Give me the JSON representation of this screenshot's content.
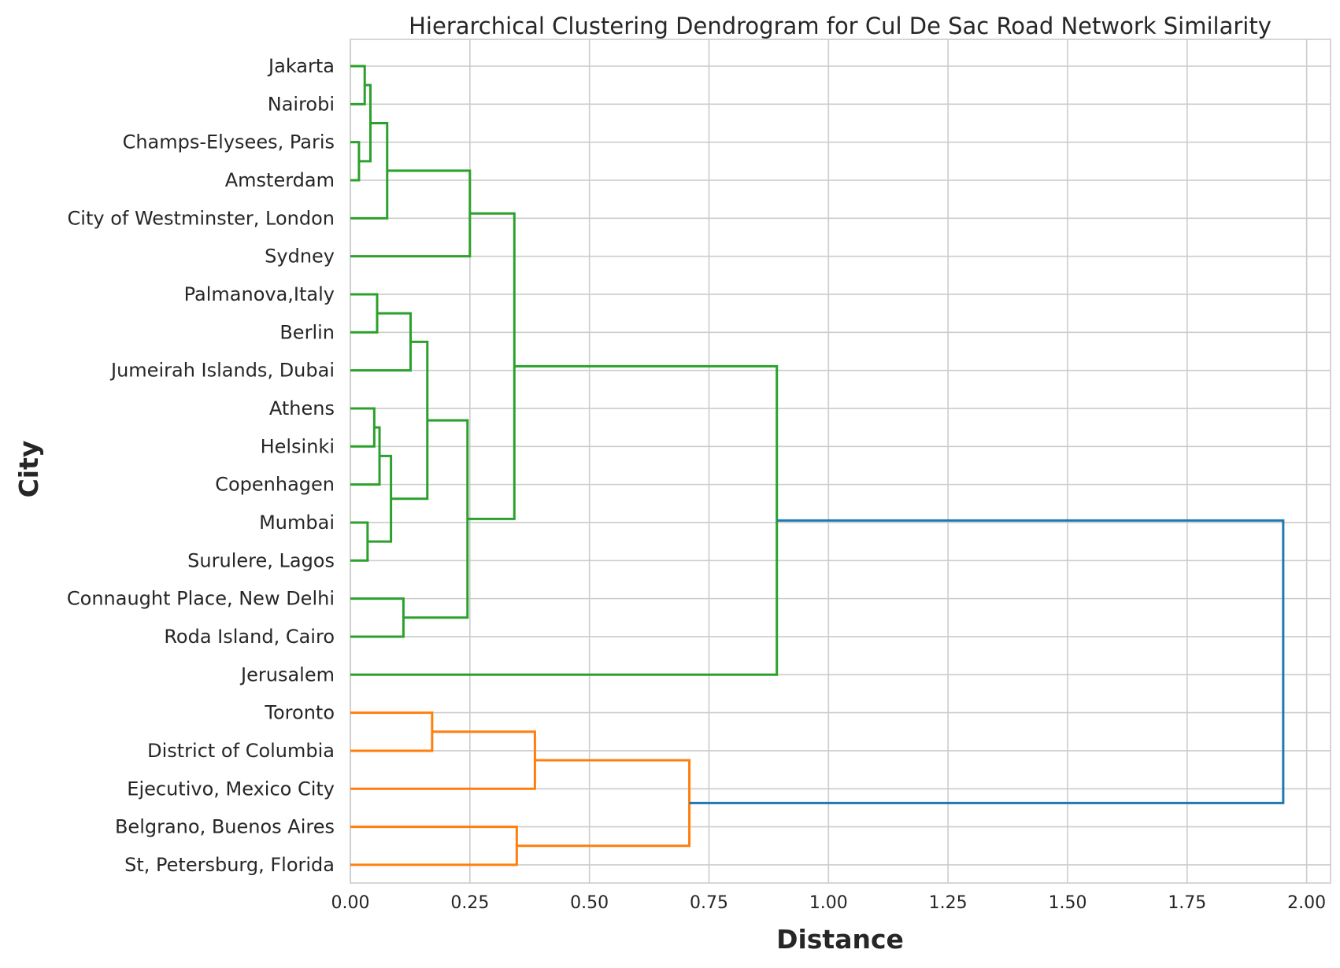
{
  "chart_data": {
    "type": "dendrogram",
    "orientation": "horizontal",
    "title": "Hierarchical Clustering Dendrogram for Cul De Sac Road Network Similarity",
    "xlabel": "Distance",
    "ylabel": "City",
    "xlim": [
      0,
      2.05
    ],
    "xticks": [
      0.0,
      0.25,
      0.5,
      0.75,
      1.0,
      1.25,
      1.5,
      1.75,
      2.0
    ],
    "xtick_labels": [
      "0.00",
      "0.25",
      "0.50",
      "0.75",
      "1.00",
      "1.25",
      "1.50",
      "1.75",
      "2.00"
    ],
    "grid": true,
    "leaves": [
      "Jakarta",
      "Nairobi",
      "Champs-Elysees, Paris",
      "Amsterdam",
      "City of Westminster, London",
      "Sydney",
      "Palmanova,Italy",
      "Berlin",
      "Jumeirah Islands, Dubai",
      "Athens",
      "Helsinki",
      "Copenhagen",
      "Mumbai",
      "Surulere, Lagos",
      "Connaught Place, New Delhi",
      "Roda Island, Cairo",
      "Jerusalem",
      "Toronto",
      "District of Columbia",
      "Ejecutivo, Mexico City",
      "Belgrano, Buenos Aires",
      "St, Petersburg, Florida"
    ],
    "colors": {
      "cluster_1": "#2ca02c",
      "cluster_2": "#ff7f0e",
      "root": "#1f77b4"
    },
    "merges": [
      {
        "id": "m1",
        "children": [
          "Champs-Elysees, Paris",
          "Amsterdam"
        ],
        "distance": 0.018,
        "color": "#2ca02c"
      },
      {
        "id": "m2",
        "children": [
          "Jakarta",
          "Nairobi"
        ],
        "distance": 0.03,
        "color": "#2ca02c"
      },
      {
        "id": "m3",
        "children": [
          "m2",
          "m1"
        ],
        "distance": 0.042,
        "color": "#2ca02c"
      },
      {
        "id": "m4",
        "children": [
          "m3",
          "City of Westminster, London"
        ],
        "distance": 0.077,
        "color": "#2ca02c"
      },
      {
        "id": "m5",
        "children": [
          "m4",
          "Sydney"
        ],
        "distance": 0.25,
        "color": "#2ca02c"
      },
      {
        "id": "m6",
        "children": [
          "Palmanova,Italy",
          "Berlin"
        ],
        "distance": 0.056,
        "color": "#2ca02c"
      },
      {
        "id": "m7",
        "children": [
          "m6",
          "Jumeirah Islands, Dubai"
        ],
        "distance": 0.126,
        "color": "#2ca02c"
      },
      {
        "id": "m8",
        "children": [
          "Athens",
          "Helsinki"
        ],
        "distance": 0.05,
        "color": "#2ca02c"
      },
      {
        "id": "m9",
        "children": [
          "m8",
          "Copenhagen"
        ],
        "distance": 0.061,
        "color": "#2ca02c"
      },
      {
        "id": "m10",
        "children": [
          "Mumbai",
          "Surulere, Lagos"
        ],
        "distance": 0.036,
        "color": "#2ca02c"
      },
      {
        "id": "m11",
        "children": [
          "m9",
          "m10"
        ],
        "distance": 0.085,
        "color": "#2ca02c"
      },
      {
        "id": "m12",
        "children": [
          "m7",
          "m11"
        ],
        "distance": 0.161,
        "color": "#2ca02c"
      },
      {
        "id": "m13",
        "children": [
          "Connaught Place, New Delhi",
          "Roda Island, Cairo"
        ],
        "distance": 0.111,
        "color": "#2ca02c"
      },
      {
        "id": "m14",
        "children": [
          "m12",
          "m13"
        ],
        "distance": 0.245,
        "color": "#2ca02c"
      },
      {
        "id": "m15",
        "children": [
          "m5",
          "m14"
        ],
        "distance": 0.343,
        "color": "#2ca02c"
      },
      {
        "id": "m16",
        "children": [
          "m15",
          "Jerusalem"
        ],
        "distance": 0.892,
        "color": "#2ca02c"
      },
      {
        "id": "m17",
        "children": [
          "Toronto",
          "District of Columbia"
        ],
        "distance": 0.171,
        "color": "#ff7f0e"
      },
      {
        "id": "m18",
        "children": [
          "m17",
          "Ejecutivo, Mexico City"
        ],
        "distance": 0.386,
        "color": "#ff7f0e"
      },
      {
        "id": "m19",
        "children": [
          "Belgrano, Buenos Aires",
          "St, Petersburg, Florida"
        ],
        "distance": 0.348,
        "color": "#ff7f0e"
      },
      {
        "id": "m20",
        "children": [
          "m18",
          "m19"
        ],
        "distance": 0.709,
        "color": "#ff7f0e"
      },
      {
        "id": "m21",
        "children": [
          "m16",
          "m20"
        ],
        "distance": 1.951,
        "color": "#1f77b4"
      }
    ]
  }
}
